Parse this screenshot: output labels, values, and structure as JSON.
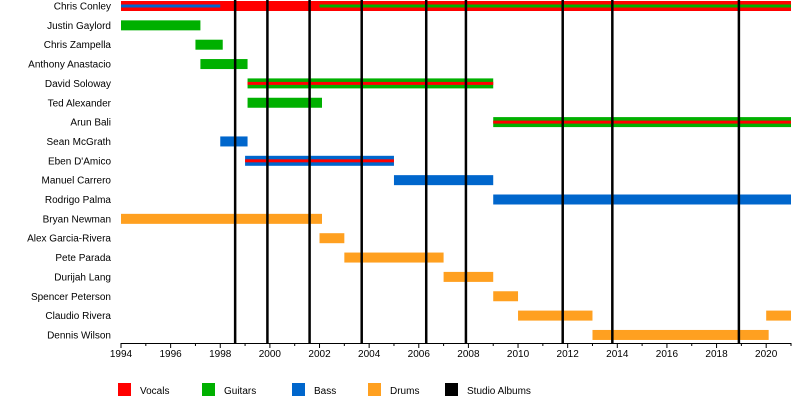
{
  "chart_data": {
    "type": "timeline",
    "title": "",
    "xlabel": "",
    "ylabel": "",
    "xlim": [
      1994,
      2021
    ],
    "x_ticks": [
      "1994",
      "1996",
      "1998",
      "2000",
      "2002",
      "2004",
      "2006",
      "2008",
      "2010",
      "2012",
      "2014",
      "2016",
      "2018",
      "2020"
    ],
    "roles": [
      {
        "name": "Vocals",
        "color": "#ff0000"
      },
      {
        "name": "Guitars",
        "color": "#00b000"
      },
      {
        "name": "Bass",
        "color": "#0066cc"
      },
      {
        "name": "Drums",
        "color": "#ffa020"
      },
      {
        "name": "Studio Albums",
        "color": "#000000"
      }
    ],
    "members": [
      {
        "name": "Chris Conley",
        "bars": [
          {
            "role": "Vocals",
            "start": 1994,
            "end": 2021,
            "inner": false
          },
          {
            "role": "Bass",
            "start": 1994,
            "end": 1998,
            "inner": true
          },
          {
            "role": "Guitars",
            "start": 2002,
            "end": 2021,
            "inner": true
          }
        ]
      },
      {
        "name": "Justin Gaylord",
        "bars": [
          {
            "role": "Guitars",
            "start": 1994,
            "end": 1997.2
          }
        ]
      },
      {
        "name": "Chris Zampella",
        "bars": [
          {
            "role": "Guitars",
            "start": 1997,
            "end": 1998.1
          }
        ]
      },
      {
        "name": "Anthony Anastacio",
        "bars": [
          {
            "role": "Guitars",
            "start": 1997.2,
            "end": 1999.1
          }
        ]
      },
      {
        "name": "David Soloway",
        "bars": [
          {
            "role": "Guitars",
            "start": 1999.1,
            "end": 2009,
            "inner": false
          },
          {
            "role": "Vocals",
            "start": 1999.1,
            "end": 2009,
            "inner": true
          }
        ]
      },
      {
        "name": "Ted Alexander",
        "bars": [
          {
            "role": "Guitars",
            "start": 1999.1,
            "end": 2002.1
          }
        ]
      },
      {
        "name": "Arun Bali",
        "bars": [
          {
            "role": "Guitars",
            "start": 2009,
            "end": 2021,
            "inner": false
          },
          {
            "role": "Vocals",
            "start": 2009,
            "end": 2021,
            "inner": true
          }
        ]
      },
      {
        "name": "Sean McGrath",
        "bars": [
          {
            "role": "Bass",
            "start": 1998,
            "end": 1999.1
          }
        ]
      },
      {
        "name": "Eben D'Amico",
        "bars": [
          {
            "role": "Bass",
            "start": 1999,
            "end": 2005,
            "inner": false
          },
          {
            "role": "Vocals",
            "start": 1999,
            "end": 2005,
            "inner": true
          }
        ]
      },
      {
        "name": "Manuel Carrero",
        "bars": [
          {
            "role": "Bass",
            "start": 2005,
            "end": 2009
          }
        ]
      },
      {
        "name": "Rodrigo Palma",
        "bars": [
          {
            "role": "Bass",
            "start": 2009,
            "end": 2021
          }
        ]
      },
      {
        "name": "Bryan Newman",
        "bars": [
          {
            "role": "Drums",
            "start": 1994,
            "end": 2002.1
          }
        ]
      },
      {
        "name": "Alex Garcia-Rivera",
        "bars": [
          {
            "role": "Drums",
            "start": 2002,
            "end": 2003
          }
        ]
      },
      {
        "name": "Pete Parada",
        "bars": [
          {
            "role": "Drums",
            "start": 2003,
            "end": 2007
          }
        ]
      },
      {
        "name": "Durijah Lang",
        "bars": [
          {
            "role": "Drums",
            "start": 2007,
            "end": 2009
          }
        ]
      },
      {
        "name": "Spencer Peterson",
        "bars": [
          {
            "role": "Drums",
            "start": 2009,
            "end": 2010
          }
        ]
      },
      {
        "name": "Claudio Rivera",
        "bars": [
          {
            "role": "Drums",
            "start": 2010,
            "end": 2013
          },
          {
            "role": "Drums",
            "start": 2020,
            "end": 2021
          }
        ]
      },
      {
        "name": "Dennis Wilson",
        "bars": [
          {
            "role": "Drums",
            "start": 2013,
            "end": 2020.1
          }
        ]
      }
    ],
    "studio_albums": [
      1998.6,
      1999.9,
      2001.6,
      2003.7,
      2006.3,
      2007.9,
      2011.8,
      2013.8,
      2018.9
    ],
    "grid": false,
    "legend_position": "bottom"
  }
}
